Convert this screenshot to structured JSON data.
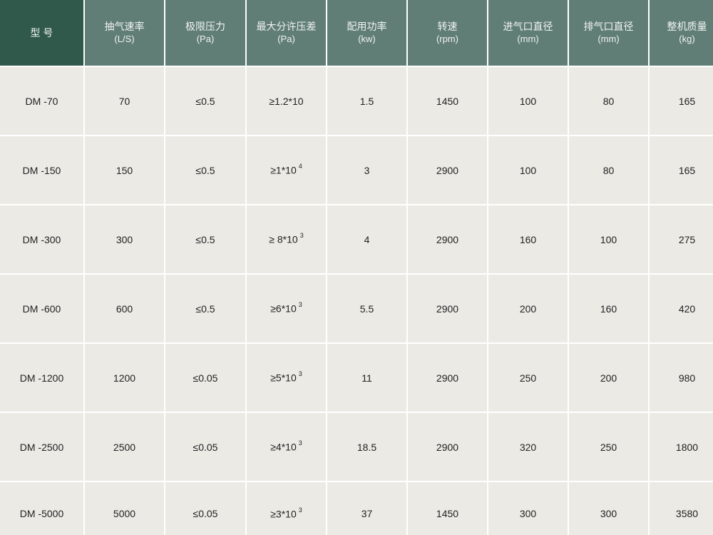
{
  "header": {
    "columns": [
      {
        "title": "型 号"
      },
      {
        "title": "抽气速率",
        "unit": "(L/S)"
      },
      {
        "title": "极限压力",
        "unit": "(Pa)"
      },
      {
        "title": "最大分许压差",
        "unit": "(Pa)"
      },
      {
        "title": "配用功率",
        "unit": "(kw)"
      },
      {
        "title": "转速",
        "unit": "(rpm)"
      },
      {
        "title": "进气口直径",
        "unit": "(mm)"
      },
      {
        "title": "排气口直径",
        "unit": "(mm)"
      },
      {
        "title": "整机质量",
        "unit": "(kg)"
      }
    ]
  },
  "table": {
    "rows": [
      [
        "DM -70",
        "70",
        "≤0.5",
        "≥1.2*10",
        "1.5",
        "1450",
        "100",
        "80",
        "165"
      ],
      [
        "DM -150",
        "150",
        "≤0.5",
        {
          "base": "≥1*10",
          "sup": "4"
        },
        "3",
        "2900",
        "100",
        "80",
        "165"
      ],
      [
        "DM -300",
        "300",
        "≤0.5",
        {
          "base": "≥ 8*10",
          "sup": "3"
        },
        "4",
        "2900",
        "160",
        "100",
        "275"
      ],
      [
        "DM -600",
        "600",
        "≤0.5",
        {
          "base": "≥6*10",
          "sup": "3"
        },
        "5.5",
        "2900",
        "200",
        "160",
        "420"
      ],
      [
        "DM -1200",
        "1200",
        "≤0.05",
        {
          "base": "≥5*10",
          "sup": "3"
        },
        "11",
        "2900",
        "250",
        "200",
        "980"
      ],
      [
        "DM -2500",
        "2500",
        "≤0.05",
        {
          "base": "≥4*10",
          "sup": "3"
        },
        "18.5",
        "2900",
        "320",
        "250",
        "1800"
      ],
      [
        "DM -5000",
        "5000",
        "≤0.05",
        {
          "base": "≥3*10",
          "sup": "3"
        },
        "37",
        "1450",
        "300",
        "300",
        "3580"
      ]
    ]
  }
}
